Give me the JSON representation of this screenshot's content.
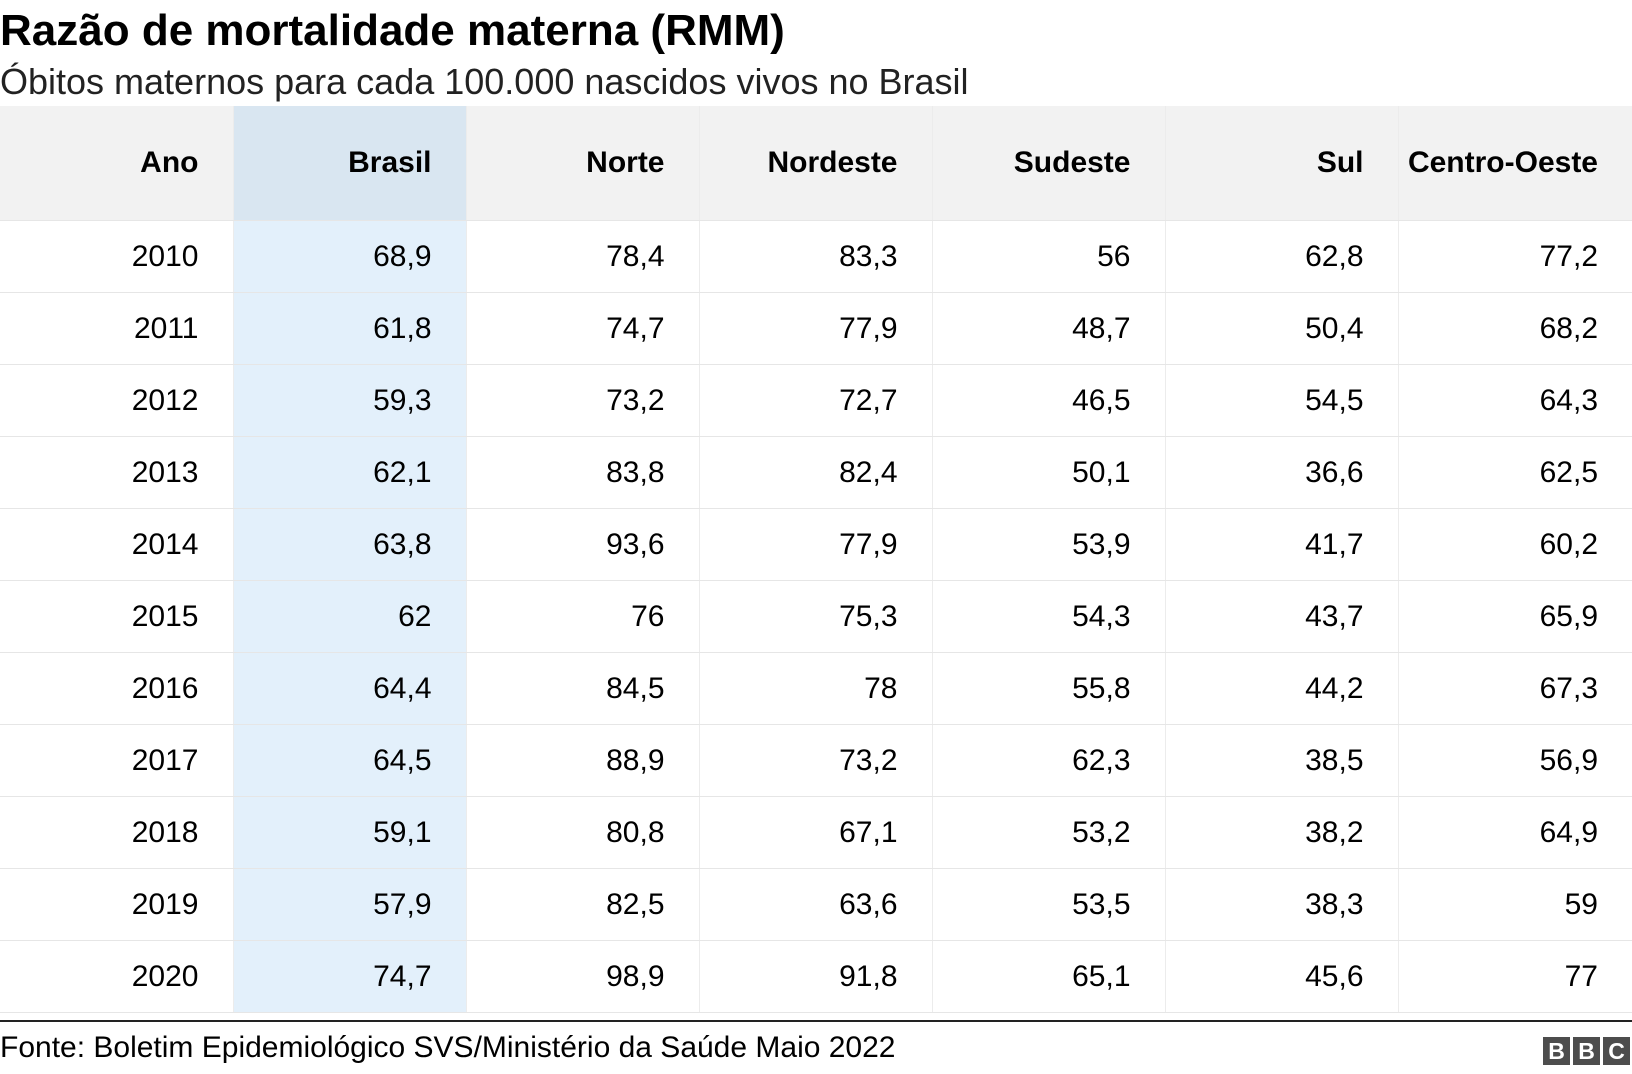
{
  "chart_data": {
    "type": "table",
    "title": "Razão de mortalidade materna (RMM)",
    "subtitle": "Óbitos maternos para cada 100.000 nascidos vivos no Brasil",
    "columns": [
      "Ano",
      "Brasil",
      "Norte",
      "Nordeste",
      "Sudeste",
      "Sul",
      "Centro-Oeste"
    ],
    "highlight_column": "Brasil",
    "highlight_color": "#e3f0fb",
    "header_background": "#f2f2f2",
    "rows": [
      [
        "2010",
        "68,9",
        "78,4",
        "83,3",
        "56",
        "62,8",
        "77,2"
      ],
      [
        "2011",
        "61,8",
        "74,7",
        "77,9",
        "48,7",
        "50,4",
        "68,2"
      ],
      [
        "2012",
        "59,3",
        "73,2",
        "72,7",
        "46,5",
        "54,5",
        "64,3"
      ],
      [
        "2013",
        "62,1",
        "83,8",
        "82,4",
        "50,1",
        "36,6",
        "62,5"
      ],
      [
        "2014",
        "63,8",
        "93,6",
        "77,9",
        "53,9",
        "41,7",
        "60,2"
      ],
      [
        "2015",
        "62",
        "76",
        "75,3",
        "54,3",
        "43,7",
        "65,9"
      ],
      [
        "2016",
        "64,4",
        "84,5",
        "78",
        "55,8",
        "44,2",
        "67,3"
      ],
      [
        "2017",
        "64,5",
        "88,9",
        "73,2",
        "62,3",
        "38,5",
        "56,9"
      ],
      [
        "2018",
        "59,1",
        "80,8",
        "67,1",
        "53,2",
        "38,2",
        "64,9"
      ],
      [
        "2019",
        "57,9",
        "82,5",
        "63,6",
        "53,5",
        "38,3",
        "59"
      ],
      [
        "2020",
        "74,7",
        "98,9",
        "91,8",
        "65,1",
        "45,6",
        "77"
      ]
    ],
    "source": "Fonte: Boletim Epidemiológico SVS/Ministério da Saúde Maio 2022"
  },
  "logo": {
    "letters": [
      "B",
      "B",
      "C"
    ]
  }
}
